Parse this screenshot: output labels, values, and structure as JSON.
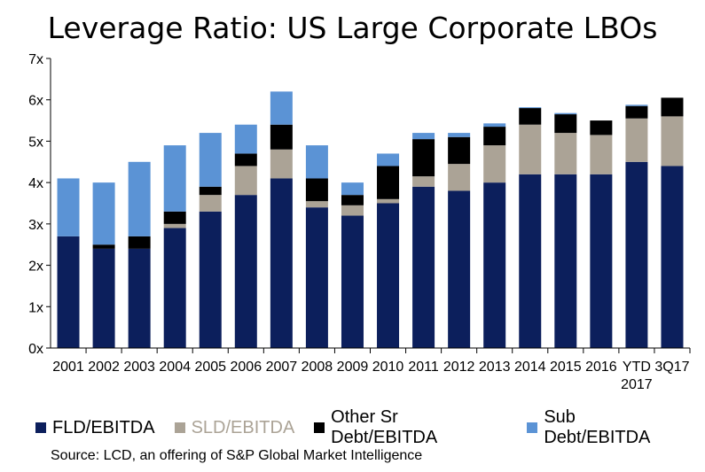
{
  "chart_data": {
    "type": "bar",
    "stacked": true,
    "title": "Leverage Ratio: US Large Corporate LBOs",
    "categories": [
      "2001",
      "2002",
      "2003",
      "2004",
      "2005",
      "2006",
      "2007",
      "2008",
      "2009",
      "2010",
      "2011",
      "2012",
      "2013",
      "2014",
      "2015",
      "2016",
      "YTD 2017",
      "3Q17"
    ],
    "series": [
      {
        "name": "FLD/EBITDA",
        "color": "#0c1f5c",
        "values": [
          2.7,
          2.4,
          2.4,
          2.9,
          3.3,
          3.7,
          4.1,
          3.4,
          3.2,
          3.5,
          3.9,
          3.8,
          4.0,
          4.2,
          4.2,
          4.2,
          4.5,
          4.4
        ]
      },
      {
        "name": "SLD/EBITDA",
        "color": "#aba396",
        "values": [
          0.0,
          0.0,
          0.0,
          0.1,
          0.4,
          0.7,
          0.7,
          0.15,
          0.25,
          0.1,
          0.25,
          0.65,
          0.9,
          1.2,
          1.0,
          0.95,
          1.05,
          1.2
        ]
      },
      {
        "name": "Other Sr Debt/EBITDA",
        "color": "#000000",
        "values": [
          0.0,
          0.1,
          0.3,
          0.3,
          0.2,
          0.3,
          0.6,
          0.55,
          0.25,
          0.8,
          0.9,
          0.65,
          0.45,
          0.4,
          0.45,
          0.35,
          0.3,
          0.45
        ]
      },
      {
        "name": "Sub Debt/EBITDA",
        "color": "#5b93d5",
        "values": [
          1.4,
          1.5,
          1.8,
          1.6,
          1.3,
          0.7,
          0.8,
          0.8,
          0.3,
          0.3,
          0.15,
          0.1,
          0.08,
          0.02,
          0.03,
          0.0,
          0.03,
          0.0
        ]
      }
    ],
    "yticks": [
      "0x",
      "1x",
      "2x",
      "3x",
      "4x",
      "5x",
      "6x",
      "7x"
    ],
    "ylim": [
      0,
      7
    ],
    "legend_position": "bottom",
    "source": "Source: LCD, an offering of S&P Global Market Intelligence"
  }
}
